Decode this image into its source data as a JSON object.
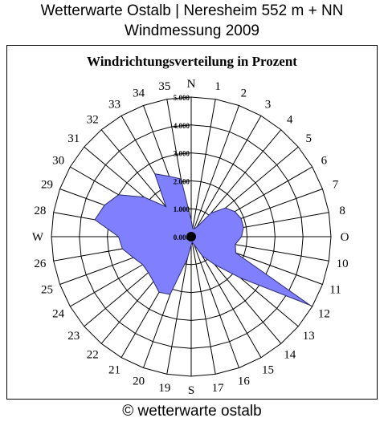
{
  "header": {
    "line1": "Wetterwarte Ostalb | Neresheim 552 m + NN",
    "line2": "Windmessung 2009"
  },
  "footer": "© wetterwarte ostalb",
  "chart_data": {
    "type": "radar",
    "title": "Windrichtungsverteilung in Prozent",
    "direction_labels": [
      "N",
      "1",
      "2",
      "3",
      "4",
      "5",
      "6",
      "7",
      "8",
      "O",
      "10",
      "11",
      "12",
      "13",
      "14",
      "15",
      "16",
      "17",
      "S",
      "19",
      "20",
      "21",
      "22",
      "23",
      "24",
      "25",
      "26",
      "W",
      "28",
      "29",
      "30",
      "31",
      "32",
      "33",
      "34",
      "35"
    ],
    "radial_tick_labels": [
      "5.000",
      "4.000",
      "3.000",
      "2.000",
      "1.000",
      "0.000"
    ],
    "radial_max": 5,
    "rings": 5,
    "series": [
      {
        "color": "#8080ff",
        "values": [
          0.6,
          0.3,
          0.3,
          0.4,
          1.1,
          1.6,
          1.8,
          1.9,
          1.9,
          1.8,
          1.6,
          1.7,
          4.9,
          2.3,
          1.3,
          0.8,
          0.3,
          0.2,
          0.3,
          0.8,
          2.2,
          2.3,
          2.1,
          2.0,
          2.0,
          2.2,
          2.5,
          2.6,
          3.5,
          3.3,
          3.0,
          2.2,
          1.4,
          2.6,
          2.3,
          2.1
        ]
      }
    ]
  }
}
